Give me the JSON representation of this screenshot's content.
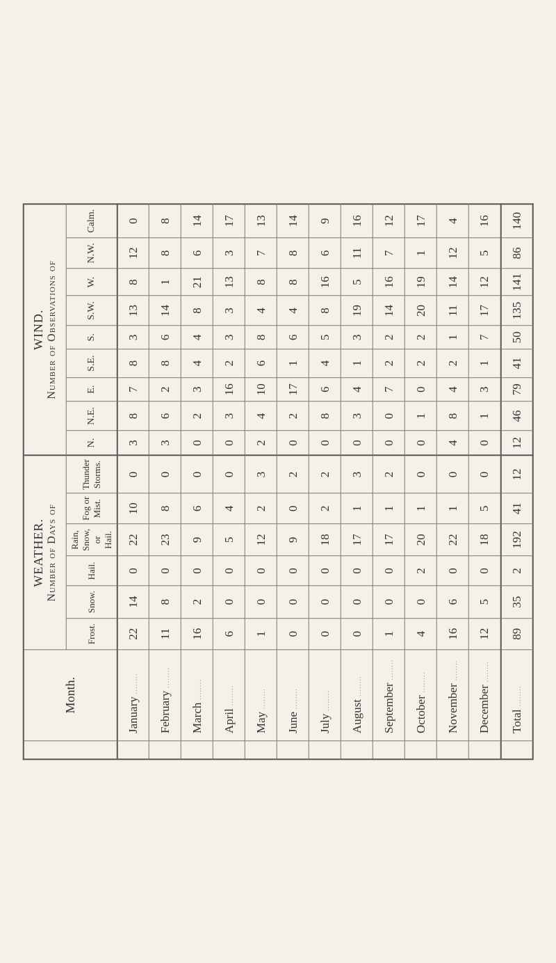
{
  "title_weather": "WEATHER.",
  "title_weather_sub": "Number of Days of",
  "title_wind": "WIND.",
  "title_wind_sub": "Number of Observations of",
  "month_label": "Month.",
  "total_label": "Total",
  "months": [
    "January",
    "February",
    "March",
    "April",
    "May",
    "June",
    "July",
    "August",
    "September",
    "October",
    "November",
    "December"
  ],
  "weather_rows": [
    {
      "label": "Frost.",
      "v": [
        22,
        11,
        16,
        6,
        1,
        0,
        0,
        0,
        1,
        4,
        16,
        12
      ],
      "t": 89
    },
    {
      "label": "Snow.",
      "v": [
        14,
        8,
        2,
        0,
        0,
        0,
        0,
        0,
        0,
        0,
        6,
        5
      ],
      "t": 35
    },
    {
      "label": "Hail.",
      "v": [
        0,
        0,
        0,
        0,
        0,
        0,
        0,
        0,
        0,
        2,
        0,
        0
      ],
      "t": 2
    },
    {
      "label": "Rain, Snow, or Hail.",
      "v": [
        22,
        23,
        9,
        5,
        12,
        9,
        18,
        17,
        17,
        20,
        22,
        18
      ],
      "t": 192
    },
    {
      "label": "Fog or Mist.",
      "v": [
        10,
        8,
        6,
        4,
        2,
        0,
        2,
        1,
        1,
        1,
        1,
        5
      ],
      "t": 41
    },
    {
      "label": "Thunder Storms.",
      "v": [
        0,
        0,
        0,
        0,
        3,
        2,
        2,
        3,
        2,
        0,
        0,
        0
      ],
      "t": 12
    }
  ],
  "wind_rows": [
    {
      "label": "N.",
      "v": [
        3,
        3,
        0,
        0,
        2,
        0,
        0,
        0,
        0,
        0,
        4,
        0
      ],
      "t": 12
    },
    {
      "label": "N.E.",
      "v": [
        8,
        6,
        2,
        3,
        4,
        2,
        8,
        3,
        0,
        1,
        8,
        1
      ],
      "t": 46
    },
    {
      "label": "E.",
      "v": [
        7,
        2,
        3,
        16,
        10,
        17,
        6,
        4,
        7,
        0,
        4,
        3
      ],
      "t": 79
    },
    {
      "label": "S.E.",
      "v": [
        8,
        8,
        4,
        2,
        6,
        1,
        4,
        1,
        2,
        2,
        2,
        1
      ],
      "t": 41
    },
    {
      "label": "S.",
      "v": [
        3,
        6,
        4,
        3,
        8,
        6,
        5,
        3,
        2,
        2,
        1,
        7
      ],
      "t": 50
    },
    {
      "label": "S.W.",
      "v": [
        13,
        14,
        8,
        3,
        4,
        4,
        8,
        19,
        14,
        20,
        11,
        17
      ],
      "t": 135
    },
    {
      "label": "W.",
      "v": [
        8,
        1,
        21,
        13,
        8,
        8,
        16,
        5,
        16,
        19,
        14,
        12
      ],
      "t": 141
    },
    {
      "label": "N.W.",
      "v": [
        12,
        8,
        6,
        3,
        7,
        8,
        6,
        11,
        7,
        1,
        12,
        5
      ],
      "t": 86
    },
    {
      "label": "Calm.",
      "v": [
        0,
        8,
        14,
        17,
        13,
        14,
        9,
        16,
        12,
        17,
        4,
        16
      ],
      "t": 140
    }
  ],
  "colors": {
    "paper": "#f5f1e8",
    "ink": "#333",
    "rule": "#777",
    "rule_heavy": "#555"
  }
}
